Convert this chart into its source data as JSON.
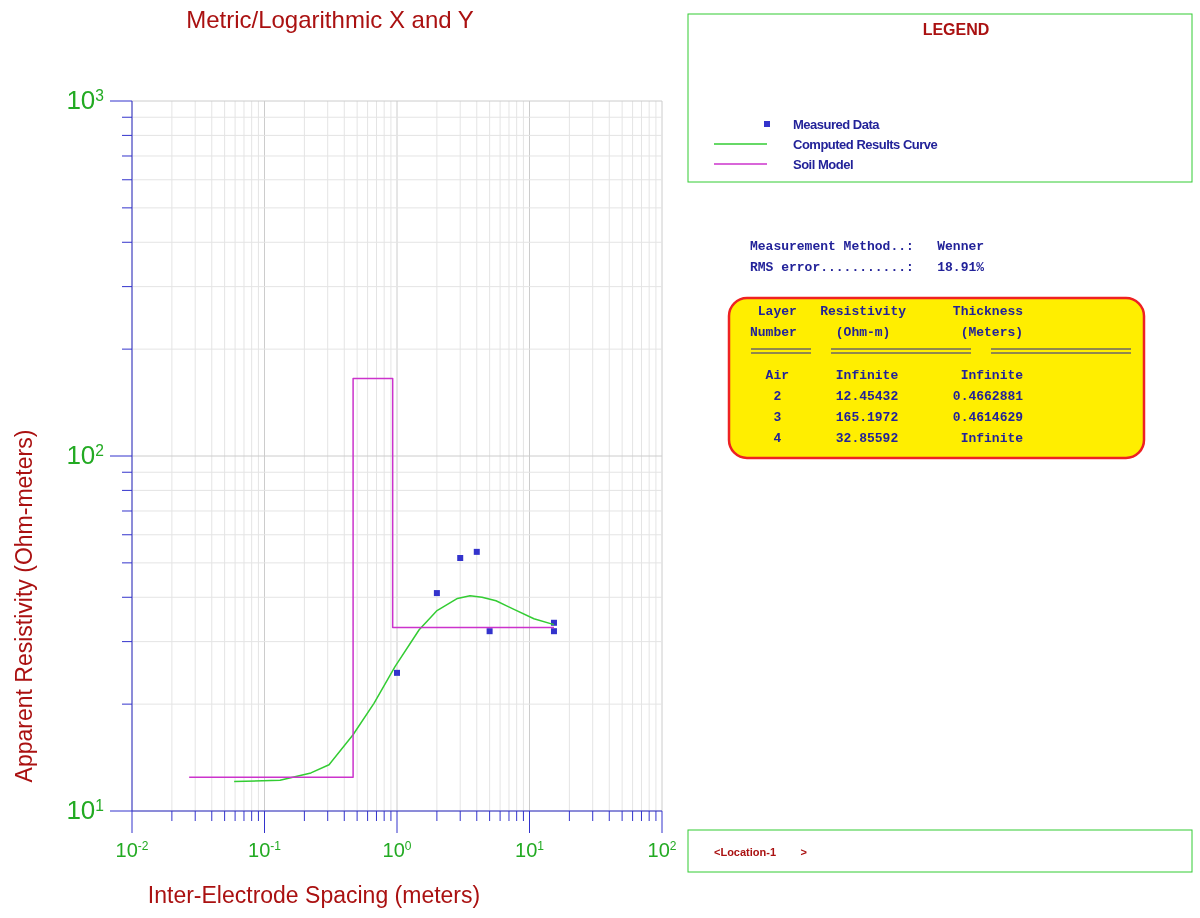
{
  "chart_data": {
    "type": "line",
    "title": "Metric/Logarithmic X and Y",
    "xlabel": "Inter-Electrode Spacing (meters)",
    "ylabel": "Apparent Resistivity (Ohm-meters)",
    "legend_title": "LEGEND",
    "log": "xy",
    "grid": true,
    "legend": "top right",
    "xlim": [
      0.01,
      100
    ],
    "ylim": [
      10,
      1000
    ],
    "xticks": [
      {
        "value": 0.01,
        "label": "10$^{-2}$"
      },
      {
        "value": 0.02,
        "label": null
      },
      {
        "value": 0.03,
        "label": null
      },
      {
        "value": 0.04,
        "label": null
      },
      {
        "value": 0.05,
        "label": null
      },
      {
        "value": 0.06,
        "label": null
      },
      {
        "value": 0.07,
        "label": null
      },
      {
        "value": 0.08,
        "label": null
      },
      {
        "value": 0.09,
        "label": null
      },
      {
        "value": 0.1,
        "label": "10$^{-1}$"
      },
      {
        "value": 0.2,
        "label": null
      },
      {
        "value": 0.3,
        "label": null
      },
      {
        "value": 0.4,
        "label": null
      },
      {
        "value": 0.5,
        "label": null
      },
      {
        "value": 0.6,
        "label": null
      },
      {
        "value": 0.7,
        "label": null
      },
      {
        "value": 0.8,
        "label": null
      },
      {
        "value": 0.9,
        "label": null
      },
      {
        "value": 1,
        "label": "10$^{0}$"
      },
      {
        "value": 2,
        "label": null
      },
      {
        "value": 3,
        "label": null
      },
      {
        "value": 4,
        "label": null
      },
      {
        "value": 5,
        "label": null
      },
      {
        "value": 6,
        "label": null
      },
      {
        "value": 7,
        "label": null
      },
      {
        "value": 8,
        "label": null
      },
      {
        "value": 9,
        "label": null
      },
      {
        "value": 10,
        "label": "10$^{1}$"
      },
      {
        "value": 20,
        "label": null
      },
      {
        "value": 30,
        "label": null
      },
      {
        "value": 40,
        "label": null
      },
      {
        "value": 50,
        "label": null
      },
      {
        "value": 60,
        "label": null
      },
      {
        "value": 70,
        "label": null
      },
      {
        "value": 80,
        "label": null
      },
      {
        "value": 90,
        "label": null
      },
      {
        "value": 100,
        "label": "10$^{2}$"
      }
    ],
    "yticks": [
      {
        "value": 10,
        "label": "10$^{1}$"
      },
      {
        "value": 20,
        "label": null
      },
      {
        "value": 30,
        "label": null
      },
      {
        "value": 40,
        "label": null
      },
      {
        "value": 50,
        "label": null
      },
      {
        "value": 60,
        "label": null
      },
      {
        "value": 70,
        "label": null
      },
      {
        "value": 80,
        "label": null
      },
      {
        "value": 90,
        "label": null
      },
      {
        "value": 100,
        "label": "10$^{2}$"
      },
      {
        "value": 200,
        "label": null
      },
      {
        "value": 300,
        "label": null
      },
      {
        "value": 400,
        "label": null
      },
      {
        "value": 500,
        "label": null
      },
      {
        "value": 600,
        "label": null
      },
      {
        "value": 700,
        "label": null
      },
      {
        "value": 800,
        "label": null
      },
      {
        "value": 900,
        "label": null
      },
      {
        "value": 1000,
        "label": "10$^{3}$"
      }
    ],
    "series": [
      {
        "name": "Measured Data",
        "type": "scatter",
        "marker": "square",
        "color": "#3333cc",
        "x": [
          1,
          2,
          3,
          4,
          5,
          15.3,
          15.3
        ],
        "values": [
          24.5,
          41.1,
          51.6,
          53.7,
          32.1,
          33.9,
          32.1
        ]
      },
      {
        "name": "Computed Results Curve",
        "color": "#33cc33",
        "x": [
          0.059,
          0.131,
          0.224,
          0.307,
          0.466,
          0.67,
          0.966,
          1.47,
          1.99,
          2.86,
          3.56,
          4.38,
          5.59,
          7.5,
          10.8,
          15.3
        ],
        "values": [
          12.1,
          12.2,
          12.8,
          13.5,
          16.4,
          20.1,
          25.5,
          32.4,
          36.6,
          39.7,
          40.4,
          40,
          39.1,
          37.1,
          34.8,
          33.5
        ]
      },
      {
        "name": "Soil Model",
        "color": "#cc33cc",
        "x": [
          0.027,
          0.4663,
          0.4663,
          0.9277,
          0.9277,
          15.3
        ],
        "values": [
          12.45,
          12.45,
          165.2,
          165.2,
          32.86,
          32.86
        ]
      }
    ],
    "annotations": [
      "Measurement Method..:   Wenner",
      "RMS error...........:   18.91%",
      " Layer   Resistivity      Thickness",
      "Number     (Ohm-m)         (Meters)",
      "  Air      Infinite        Infinite",
      "   2       12.45432       0.4662881",
      "   3       165.1972       0.4614629",
      "   4       32.85592        Infinite",
      "<Location-1        >"
    ]
  }
}
